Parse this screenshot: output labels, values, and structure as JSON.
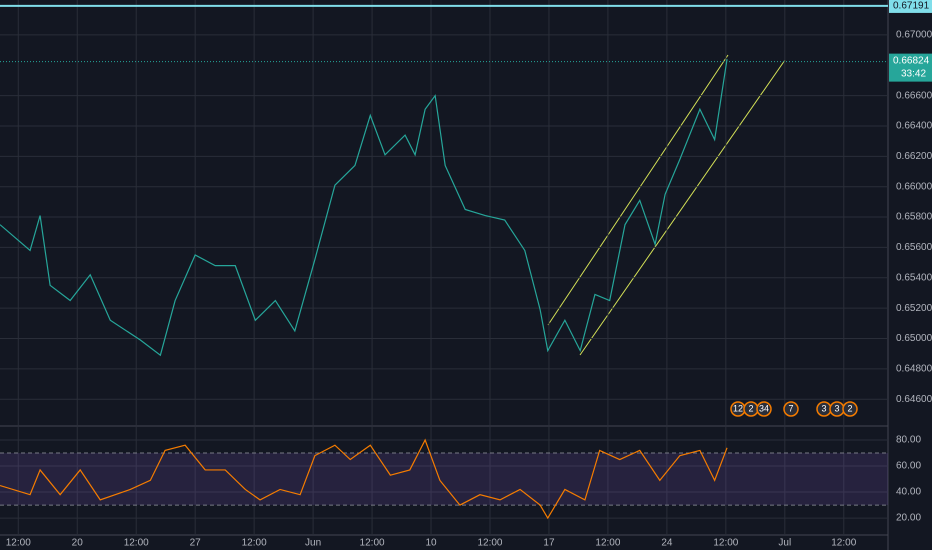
{
  "chart_data": [
    {
      "type": "line",
      "color": "#26a69a",
      "x": [
        -0.31,
        0.2,
        0.37,
        0.54,
        0.88,
        1.22,
        1.56,
        2.07,
        2.41,
        2.66,
        3.0,
        3.34,
        3.68,
        4.02,
        4.36,
        4.69,
        5.03,
        5.37,
        5.71,
        5.97,
        6.22,
        6.56,
        6.73,
        6.9,
        7.07,
        7.24,
        7.58,
        7.92,
        8.25,
        8.59,
        8.85,
        8.98,
        9.27,
        9.53,
        9.78,
        10.03,
        10.29,
        10.54,
        10.8,
        10.97,
        11.22,
        11.56,
        11.81,
        12.02
      ],
      "values": [
        0.6575,
        0.6558,
        0.6581,
        0.6535,
        0.6525,
        0.6542,
        0.6512,
        0.6499,
        0.6489,
        0.6525,
        0.6555,
        0.6548,
        0.6548,
        0.6512,
        0.6525,
        0.6505,
        0.6552,
        0.6601,
        0.6614,
        0.6647,
        0.6621,
        0.6634,
        0.6621,
        0.6651,
        0.666,
        0.6614,
        0.6585,
        0.6581,
        0.6578,
        0.6558,
        0.6519,
        0.6492,
        0.6512,
        0.6492,
        0.6529,
        0.6525,
        0.6575,
        0.6591,
        0.6562,
        0.6595,
        0.6618,
        0.6651,
        0.6631,
        0.6684
      ],
      "xlim": [
        -0.31,
        14.75
      ],
      "ylim": [
        0.6443,
        0.6723
      ],
      "yticks": [
        {
          "value": 0.67,
          "label": "0.67000"
        },
        {
          "value": 0.666,
          "label": "0.66600"
        },
        {
          "value": 0.664,
          "label": "0.66400"
        },
        {
          "value": 0.662,
          "label": "0.66200"
        },
        {
          "value": 0.66,
          "label": "0.66000"
        },
        {
          "value": 0.658,
          "label": "0.65800"
        },
        {
          "value": 0.656,
          "label": "0.65600"
        },
        {
          "value": 0.654,
          "label": "0.65400"
        },
        {
          "value": 0.652,
          "label": "0.65200"
        },
        {
          "value": 0.65,
          "label": "0.65000"
        },
        {
          "value": 0.648,
          "label": "0.64800"
        },
        {
          "value": 0.646,
          "label": "0.64600"
        }
      ],
      "last_price": 0.66824,
      "countdown": "33:42",
      "alert_price": 0.67191,
      "event_badges": [
        "12",
        "2",
        "34",
        "7",
        "3",
        "3",
        "2"
      ],
      "grid": true
    },
    {
      "type": "line",
      "color": "#f57c00",
      "x": [
        -0.31,
        0.2,
        0.37,
        0.71,
        1.05,
        1.39,
        1.9,
        2.24,
        2.49,
        2.83,
        3.17,
        3.51,
        3.85,
        4.1,
        4.44,
        4.78,
        5.03,
        5.37,
        5.63,
        5.97,
        6.31,
        6.64,
        6.9,
        7.15,
        7.49,
        7.83,
        8.17,
        8.51,
        8.85,
        8.98,
        9.27,
        9.61,
        9.86,
        10.2,
        10.54,
        10.88,
        11.22,
        11.56,
        11.81,
        12.02
      ],
      "values": [
        45,
        38,
        57,
        38,
        57,
        34,
        42,
        49,
        72,
        76,
        57,
        57,
        42,
        34,
        42,
        38,
        68,
        76,
        65,
        76,
        53,
        57,
        80,
        49,
        30,
        38,
        34,
        42,
        30,
        20,
        42,
        34,
        72,
        65,
        72,
        49,
        68,
        72,
        49,
        74
      ],
      "xlim": [
        -0.31,
        14.75
      ],
      "ylim": [
        7,
        90
      ],
      "band": [
        30,
        70
      ],
      "yticks": [
        {
          "value": 80,
          "label": "80.00"
        },
        {
          "value": 60,
          "label": "60.00"
        },
        {
          "value": 40,
          "label": "40.00"
        },
        {
          "value": 20,
          "label": "20.00"
        }
      ],
      "xticks": [
        {
          "value": 0,
          "label": "12:00"
        },
        {
          "value": 1,
          "label": "20"
        },
        {
          "value": 2,
          "label": "12:00"
        },
        {
          "value": 3,
          "label": "27"
        },
        {
          "value": 4,
          "label": "12:00"
        },
        {
          "value": 5,
          "label": "Jun"
        },
        {
          "value": 6,
          "label": "12:00"
        },
        {
          "value": 7,
          "label": "10"
        },
        {
          "value": 8,
          "label": "12:00"
        },
        {
          "value": 9,
          "label": "17"
        },
        {
          "value": 10,
          "label": "12:00"
        },
        {
          "value": 11,
          "label": "24"
        },
        {
          "value": 12,
          "label": "12:00"
        },
        {
          "value": 13,
          "label": "Jul"
        },
        {
          "value": 14,
          "label": "12:00"
        }
      ],
      "grid": true
    }
  ]
}
